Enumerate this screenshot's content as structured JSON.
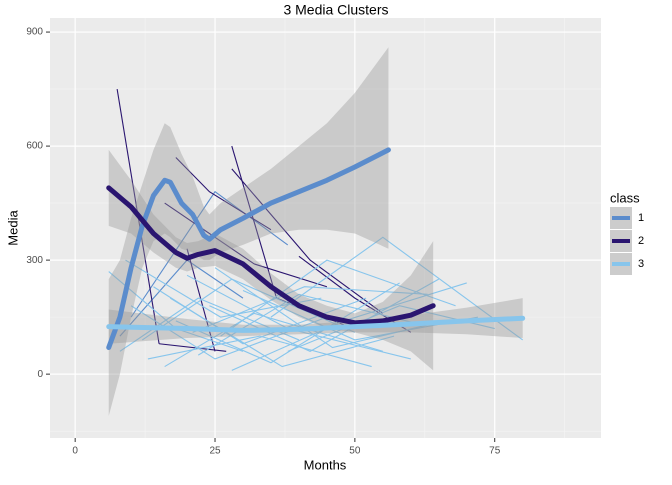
{
  "chart_data": {
    "type": "line",
    "title": "3 Media Clusters",
    "x_label": "Months",
    "y_label": "Media",
    "legend_title": "class",
    "xlim": [
      -4.5,
      94
    ],
    "ylim": [
      -168,
      937
    ],
    "xticks": [
      0,
      25,
      50,
      75
    ],
    "yticks": [
      0,
      300,
      600,
      900
    ],
    "x_minor": [
      12.5,
      37.5,
      62.5,
      87.5
    ],
    "y_minor": [
      -150,
      150,
      450,
      750
    ],
    "ribbon_color": "#999999",
    "series": [
      {
        "name": "1",
        "color": "#5b8ccc",
        "x": [
          6,
          8,
          10,
          12,
          14,
          16,
          17,
          19,
          21,
          23,
          24,
          26,
          30,
          35,
          40,
          45,
          50,
          56
        ],
        "values": [
          70,
          150,
          280,
          390,
          470,
          510,
          505,
          450,
          420,
          365,
          355,
          380,
          410,
          450,
          480,
          510,
          545,
          590
        ],
        "lower": [
          -110,
          0,
          150,
          280,
          350,
          370,
          360,
          330,
          320,
          300,
          300,
          320,
          340,
          370,
          380,
          380,
          370,
          330
        ],
        "upper": [
          250,
          300,
          410,
          500,
          590,
          660,
          650,
          580,
          520,
          440,
          420,
          450,
          490,
          540,
          600,
          660,
          740,
          860
        ],
        "lines": [
          {
            "x": [
              8,
              20,
              30
            ],
            "y": [
              100,
              300,
              200
            ]
          },
          {
            "x": [
              10,
              25,
              38
            ],
            "y": [
              150,
              480,
              340
            ]
          }
        ]
      },
      {
        "name": "2",
        "color": "#2a1570",
        "x": [
          6,
          10,
          14,
          18,
          20,
          22,
          25,
          30,
          35,
          40,
          45,
          50,
          55,
          60,
          64
        ],
        "values": [
          490,
          440,
          370,
          320,
          305,
          315,
          325,
          290,
          230,
          180,
          150,
          135,
          140,
          155,
          180
        ],
        "lower": [
          390,
          370,
          320,
          280,
          270,
          280,
          285,
          250,
          195,
          150,
          120,
          110,
          90,
          60,
          10
        ],
        "upper": [
          590,
          510,
          420,
          360,
          345,
          350,
          370,
          330,
          265,
          210,
          180,
          160,
          190,
          260,
          350
        ],
        "lines": [
          {
            "x": [
              7.5,
              15
            ],
            "y": [
              750,
              80
            ]
          },
          {
            "x": [
              15,
              27
            ],
            "y": [
              80,
              60
            ]
          },
          {
            "x": [
              20,
              25
            ],
            "y": [
              330,
              60
            ]
          },
          {
            "x": [
              18,
              24,
              35
            ],
            "y": [
              570,
              480,
              380
            ]
          },
          {
            "x": [
              28,
              36,
              48
            ],
            "y": [
              600,
              200,
              130
            ]
          },
          {
            "x": [
              28,
              42,
              55
            ],
            "y": [
              540,
              300,
              160
            ]
          },
          {
            "x": [
              40,
              50,
              60
            ],
            "y": [
              310,
              200,
              110
            ]
          },
          {
            "x": [
              16,
              32,
              45
            ],
            "y": [
              450,
              290,
              230
            ]
          }
        ]
      },
      {
        "name": "3",
        "color": "#87c5ec",
        "x": [
          6,
          20,
          30,
          40,
          50,
          60,
          70,
          80
        ],
        "values": [
          125,
          120,
          115,
          118,
          125,
          132,
          140,
          147
        ],
        "lower": [
          80,
          95,
          100,
          105,
          110,
          110,
          105,
          95
        ],
        "upper": [
          170,
          145,
          130,
          130,
          140,
          155,
          175,
          200
        ],
        "lines": [
          {
            "x": [
              6,
              18,
              30
            ],
            "y": [
              270,
              120,
              60
            ]
          },
          {
            "x": [
              8,
              22,
              40
            ],
            "y": [
              60,
              200,
              90
            ]
          },
          {
            "x": [
              10,
              25,
              45
            ],
            "y": [
              180,
              40,
              150
            ]
          },
          {
            "x": [
              12,
              28,
              50
            ],
            "y": [
              90,
              250,
              110
            ]
          },
          {
            "x": [
              14,
              30,
              52
            ],
            "y": [
              230,
              80,
              200
            ]
          },
          {
            "x": [
              16,
              32,
              55
            ],
            "y": [
              20,
              160,
              60
            ]
          },
          {
            "x": [
              18,
              35,
              58
            ],
            "y": [
              140,
              30,
              240
            ]
          },
          {
            "x": [
              20,
              38,
              60
            ],
            "y": [
              260,
              120,
              40
            ]
          },
          {
            "x": [
              22,
              40,
              62
            ],
            "y": [
              50,
              210,
              130
            ]
          },
          {
            "x": [
              24,
              42,
              65
            ],
            "y": [
              180,
              60,
              250
            ]
          },
          {
            "x": [
              26,
              45,
              68
            ],
            "y": [
              100,
              300,
              180
            ]
          },
          {
            "x": [
              28,
              48,
              70
            ],
            "y": [
              10,
              140,
              240
            ]
          },
          {
            "x": [
              30,
              50,
              72
            ],
            "y": [
              220,
              90,
              150
            ]
          },
          {
            "x": [
              35,
              55,
              80
            ],
            "y": [
              150,
              360,
              90
            ]
          },
          {
            "x": [
              38,
              58,
              75
            ],
            "y": [
              60,
              180,
              120
            ]
          },
          {
            "x": [
              9,
              26,
              44
            ],
            "y": [
              300,
              150,
              200
            ]
          },
          {
            "x": [
              13,
              33,
              53
            ],
            "y": [
              40,
              100,
              20
            ]
          },
          {
            "x": [
              17,
              37,
              57
            ],
            "y": [
              200,
              20,
              100
            ]
          },
          {
            "x": [
              21,
              41,
              63
            ],
            "y": [
              110,
              230,
              210
            ]
          },
          {
            "x": [
              25,
              46,
              66
            ],
            "y": [
              280,
              70,
              140
            ]
          }
        ]
      }
    ]
  }
}
